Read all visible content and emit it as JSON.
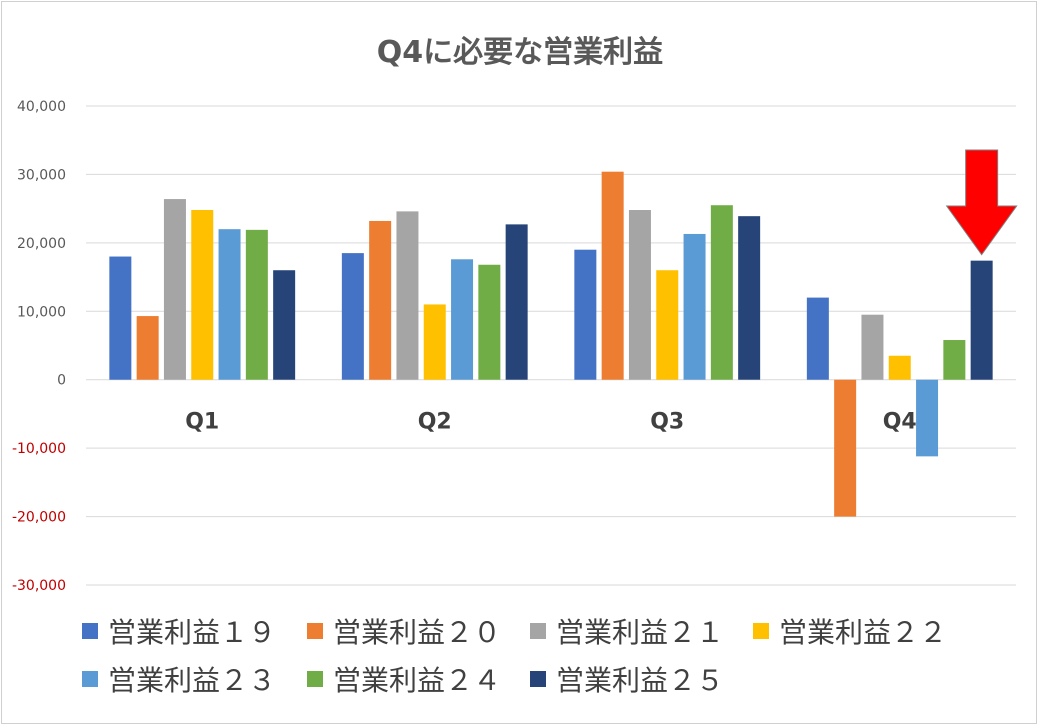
{
  "chart_data": {
    "type": "bar",
    "title": "Q4に必要な営業利益",
    "categories": [
      "Q1",
      "Q2",
      "Q3",
      "Q4"
    ],
    "ylim": [
      -30000,
      40000
    ],
    "yticks": [
      {
        "value": 40000,
        "label": "40,000"
      },
      {
        "value": 30000,
        "label": "30,000"
      },
      {
        "value": 20000,
        "label": "20,000"
      },
      {
        "value": 10000,
        "label": "10,000"
      },
      {
        "value": 0,
        "label": "0"
      },
      {
        "value": -10000,
        "label": "-10,000"
      },
      {
        "value": -20000,
        "label": "-20,000"
      },
      {
        "value": -30000,
        "label": "-30,000"
      }
    ],
    "grid": true,
    "legend_position": "bottom",
    "series": [
      {
        "name": "営業利益１９",
        "color": "#4472C4",
        "values": [
          18000,
          18500,
          19000,
          12000
        ]
      },
      {
        "name": "営業利益２０",
        "color": "#ED7D31",
        "values": [
          9300,
          23200,
          30400,
          -20000
        ]
      },
      {
        "name": "営業利益２１",
        "color": "#A5A5A5",
        "values": [
          26400,
          24600,
          24800,
          9500
        ]
      },
      {
        "name": "営業利益２２",
        "color": "#FFC000",
        "values": [
          24800,
          11000,
          16000,
          3500
        ]
      },
      {
        "name": "営業利益２３",
        "color": "#5B9BD5",
        "values": [
          22000,
          17600,
          21300,
          -11200
        ]
      },
      {
        "name": "営業利益２４",
        "color": "#70AD47",
        "values": [
          21900,
          16800,
          25500,
          5800
        ]
      },
      {
        "name": "営業利益２５",
        "color": "#264478",
        "values": [
          16000,
          22700,
          23900,
          17400
        ]
      }
    ],
    "annotation": {
      "type": "arrow",
      "color": "#FF0000",
      "points_to": {
        "category": "Q4",
        "series": "営業利益２５"
      }
    },
    "colors": {
      "negative_tick": "#C00000",
      "tick": "#595959",
      "grid": "#D9D9D9"
    }
  }
}
